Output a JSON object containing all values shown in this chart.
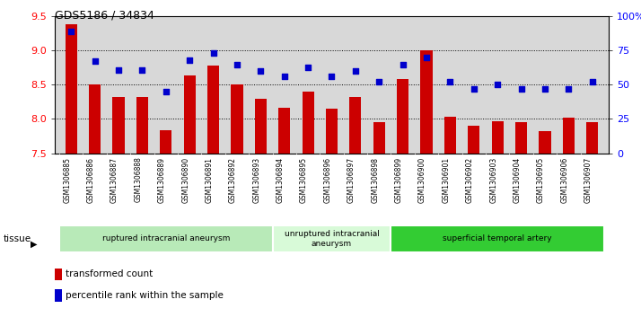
{
  "title": "GDS5186 / 34834",
  "samples": [
    "GSM1306885",
    "GSM1306886",
    "GSM1306887",
    "GSM1306888",
    "GSM1306889",
    "GSM1306890",
    "GSM1306891",
    "GSM1306892",
    "GSM1306893",
    "GSM1306894",
    "GSM1306895",
    "GSM1306896",
    "GSM1306897",
    "GSM1306898",
    "GSM1306899",
    "GSM1306900",
    "GSM1306901",
    "GSM1306902",
    "GSM1306903",
    "GSM1306904",
    "GSM1306905",
    "GSM1306906",
    "GSM1306907"
  ],
  "bar_values": [
    9.38,
    8.5,
    8.32,
    8.32,
    7.83,
    8.63,
    8.78,
    8.5,
    8.3,
    8.17,
    8.4,
    8.15,
    8.32,
    7.96,
    8.58,
    9.0,
    8.03,
    7.9,
    7.97,
    7.95,
    7.82,
    8.02,
    7.96
  ],
  "percentile_values": [
    89,
    67,
    61,
    61,
    45,
    68,
    73,
    65,
    60,
    56,
    63,
    56,
    60,
    52,
    65,
    70,
    52,
    47,
    50,
    47,
    47,
    47,
    52
  ],
  "groups": [
    {
      "label": "ruptured intracranial aneurysm",
      "start": 0,
      "end": 9,
      "color": "#b8eab8"
    },
    {
      "label": "unruptured intracranial\naneurysm",
      "start": 9,
      "end": 14,
      "color": "#d8fad8"
    },
    {
      "label": "superficial temporal artery",
      "start": 14,
      "end": 23,
      "color": "#33cc33"
    }
  ],
  "bar_color": "#cc0000",
  "dot_color": "#0000cc",
  "ylim_left": [
    7.5,
    9.5
  ],
  "ylim_right": [
    0,
    100
  ],
  "yticks_left": [
    7.5,
    8.0,
    8.5,
    9.0,
    9.5
  ],
  "yticks_right": [
    0,
    25,
    50,
    75,
    100
  ],
  "ytick_labels_right": [
    "0",
    "25",
    "50",
    "75",
    "100%"
  ],
  "grid_values": [
    8.0,
    8.5,
    9.0
  ],
  "plot_bg": "#d8d8d8",
  "xticklabel_bg": "#d8d8d8",
  "legend_bar_label": "transformed count",
  "legend_dot_label": "percentile rank within the sample",
  "tissue_label": "tissue"
}
